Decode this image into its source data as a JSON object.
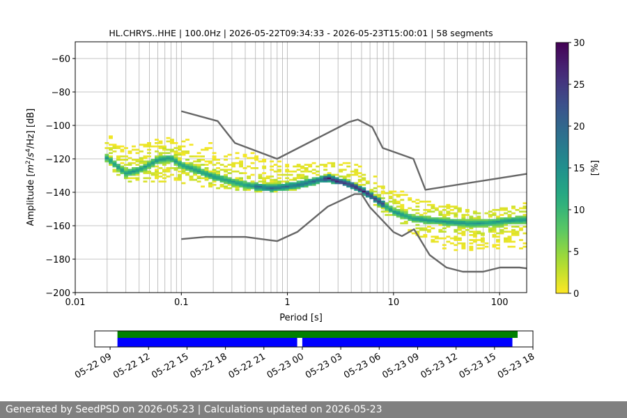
{
  "chart_data": [
    {
      "type": "heatmap",
      "title": "HL.CHRYS..HHE | 100.0Hz | 2026-05-22T09:34:33 - 2026-05-23T15:00:01 | 58 segments",
      "xlabel": "Period [s]",
      "ylabel_parts": [
        "Amplitude [",
        "m",
        "2",
        "/",
        "s",
        "4",
        "/Hz] [dB]"
      ],
      "x_scale": "log",
      "xlim": [
        0.01,
        180
      ],
      "ylim": [
        -200,
        -50
      ],
      "x_ticks": [
        0.01,
        0.1,
        1,
        10,
        100
      ],
      "x_tick_labels": [
        "0.01",
        "0.1",
        "1",
        "10",
        "100"
      ],
      "y_ticks": [
        -200,
        -180,
        -160,
        -140,
        -120,
        -100,
        -80,
        -60
      ],
      "y_tick_labels": [
        "−200",
        "−180",
        "−160",
        "−140",
        "−120",
        "−100",
        "−80",
        "−60"
      ],
      "grid": true,
      "colormap": "viridis_r",
      "colorbar": {
        "label": "[%]",
        "range": [
          0,
          30
        ],
        "ticks": [
          0,
          5,
          10,
          15,
          20,
          25,
          30
        ],
        "tick_labels": [
          "0",
          "5",
          "10",
          "15",
          "20",
          "25",
          "30"
        ]
      },
      "psd_mode": {
        "period": [
          0.02,
          0.025,
          0.03,
          0.04,
          0.05,
          0.06,
          0.08,
          0.1,
          0.15,
          0.2,
          0.3,
          0.4,
          0.5,
          0.7,
          1,
          1.5,
          2,
          2.5,
          3,
          4,
          5,
          7,
          10,
          15,
          20,
          30,
          50,
          70,
          100,
          150,
          180
        ],
        "db": [
          -120,
          -125,
          -129,
          -127,
          -124,
          -121,
          -120,
          -124,
          -128,
          -131,
          -134,
          -136,
          -137,
          -138,
          -137,
          -135,
          -133,
          -132,
          -134,
          -136,
          -139,
          -145,
          -152,
          -156,
          -157,
          -158,
          -159,
          -159,
          -158,
          -157,
          -157
        ]
      },
      "psd_upper": {
        "period": [
          0.02,
          0.025,
          0.03,
          0.04,
          0.05,
          0.07,
          0.1,
          0.15,
          0.2,
          0.3,
          0.5,
          0.7,
          1,
          1.5,
          2,
          3,
          4,
          5,
          7,
          10,
          15,
          20,
          30,
          50,
          70,
          100,
          150,
          180
        ],
        "db": [
          -107,
          -110,
          -113,
          -113,
          -110,
          -108,
          -108,
          -108,
          -110,
          -113,
          -117,
          -121,
          -124,
          -124,
          -123,
          -123,
          -124,
          -126,
          -131,
          -139,
          -143,
          -146,
          -148,
          -152,
          -153,
          -151,
          -148,
          -147
        ]
      },
      "psd_lower": {
        "period": [
          0.02,
          0.025,
          0.03,
          0.04,
          0.05,
          0.07,
          0.1,
          0.15,
          0.2,
          0.3,
          0.5,
          0.7,
          1,
          1.5,
          2,
          3,
          4,
          5,
          7,
          10,
          15,
          20,
          30,
          50,
          70,
          100,
          150,
          180
        ],
        "db": [
          -123,
          -129,
          -133,
          -134,
          -134,
          -134,
          -135,
          -136,
          -137,
          -138,
          -139,
          -140,
          -139,
          -137,
          -135,
          -134,
          -137,
          -140,
          -148,
          -158,
          -164,
          -168,
          -173,
          -177,
          -178,
          -177,
          -175,
          -174
        ]
      },
      "nhnm": {
        "period": [
          0.1,
          0.22,
          0.32,
          0.8,
          3.8,
          4.6,
          6.3,
          7.9,
          15.4,
          20,
          180
        ],
        "db": [
          -91.5,
          -97.4,
          -110.5,
          -120,
          -98,
          -96.5,
          -101,
          -113.5,
          -120,
          -138.5,
          -129
        ]
      },
      "nlnm": {
        "period": [
          0.1,
          0.17,
          0.4,
          0.8,
          1.24,
          2.4,
          4.3,
          5,
          6,
          10,
          12,
          15.6,
          21.9,
          31.6,
          45,
          70,
          101,
          154,
          180
        ],
        "db": [
          -168,
          -166.7,
          -166.7,
          -169.2,
          -163.7,
          -148.6,
          -141.1,
          -141.1,
          -149,
          -163.8,
          -166.2,
          -162.1,
          -177.5,
          -185,
          -187.5,
          -187.5,
          -185,
          -185,
          -185.5
        ]
      },
      "noise_model_color": "#666666"
    },
    {
      "type": "timeline",
      "x_tick_labels": [
        "05-22 09",
        "05-22 12",
        "05-22 15",
        "05-22 18",
        "05-22 21",
        "05-23 00",
        "05-23 03",
        "05-23 06",
        "05-23 09",
        "05-23 12",
        "05-23 15",
        "05-23 18"
      ],
      "x_range_hours": [
        7.8,
        42.0
      ],
      "coverage_green_hours": [
        [
          9.57,
          40.8
        ]
      ],
      "coverage_blue_hours": [
        [
          9.57,
          23.6
        ],
        [
          24.0,
          40.4
        ]
      ],
      "green": "#008000",
      "blue": "#0000ff"
    }
  ],
  "footer": {
    "text": "Generated by SeedPSD on 2026-05-23 | Calculations updated on 2026-05-23"
  }
}
